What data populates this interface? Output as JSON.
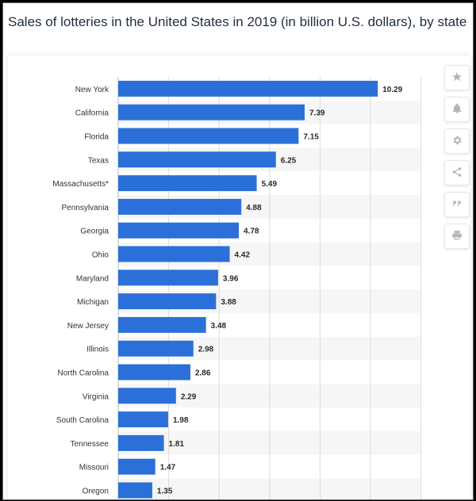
{
  "title": "Sales of lotteries in the United States in 2019 (in billion U.S. dollars), by state",
  "toolbar": {
    "icons": [
      "star-icon",
      "bell-icon",
      "gear-icon",
      "share-icon",
      "quote-icon",
      "print-icon"
    ]
  },
  "colors": {
    "bar": "#2b70d8",
    "stripe": "#f6f6f6",
    "grid": "#dcdcdc",
    "label": "#333333",
    "value": "#2a2a2a"
  },
  "chart_data": {
    "type": "bar",
    "orientation": "horizontal",
    "title": "Sales of lotteries in the United States in 2019 (in billion U.S. dollars), by state",
    "xlabel": "",
    "ylabel": "",
    "xlim": [
      0,
      12
    ],
    "grid": true,
    "categories": [
      "New York",
      "California",
      "Florida",
      "Texas",
      "Massachusetts*",
      "Pennsylvania",
      "Georgia",
      "Ohio",
      "Maryland",
      "Michigan",
      "New Jersey",
      "Illinois",
      "North Carolina",
      "Virginia",
      "South Carolina",
      "Tennessee",
      "Missouri",
      "Oregon"
    ],
    "values": [
      10.29,
      7.39,
      7.15,
      6.25,
      5.49,
      4.88,
      4.78,
      4.42,
      3.96,
      3.88,
      3.48,
      2.98,
      2.86,
      2.29,
      1.98,
      1.81,
      1.47,
      1.35
    ],
    "value_labels": [
      "10.29",
      "7.39",
      "7.15",
      "6.25",
      "5.49",
      "4.88",
      "4.78",
      "4.42",
      "3.96",
      "3.88",
      "3.48",
      "2.98",
      "2.86",
      "2.29",
      "1.98",
      "1.81",
      "1.47",
      "1.35"
    ]
  }
}
